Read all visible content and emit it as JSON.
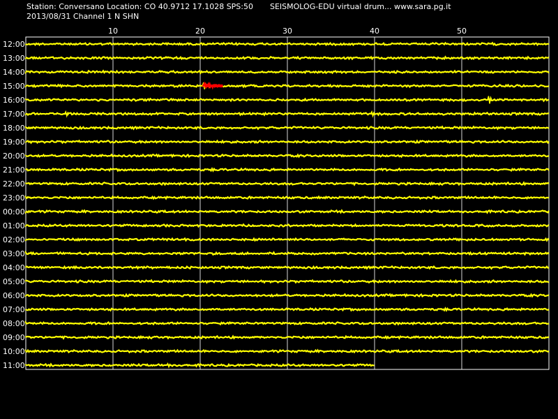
{
  "header": {
    "station_line": "Station: Conversano Location: CO 40.9712 17.1028 SPS:50",
    "date_line": "2013/08/31  Channel 1 N SHN",
    "title": "SEISMOLOG-EDU virtual drum... www.sara.pg.it"
  },
  "colors": {
    "background": "#000000",
    "trace": "#ffff00",
    "event": "#ff0000",
    "grid": "#ffffff",
    "text": "#ffffff"
  },
  "chart_data": {
    "type": "line",
    "title": "SEISMOLOG-EDU virtual drum... www.sara.pg.it",
    "xlabel": "",
    "ylabel": "",
    "x_unit": "minutes",
    "xlim": [
      0,
      60
    ],
    "x_ticks": [
      10,
      20,
      30,
      40,
      50
    ],
    "grid": true,
    "rows": [
      {
        "label": "12:00",
        "end_minute": 60,
        "spikes": []
      },
      {
        "label": "13:00",
        "end_minute": 60,
        "spikes": []
      },
      {
        "label": "14:00",
        "end_minute": 60,
        "spikes": []
      },
      {
        "label": "15:00",
        "end_minute": 60,
        "spikes": [
          {
            "minute": 20.5,
            "amp": 0.8
          }
        ],
        "event": {
          "start": 20.3,
          "end": 22.6,
          "amp": 0.6
        }
      },
      {
        "label": "16:00",
        "end_minute": 60,
        "spikes": [
          {
            "minute": 53.2,
            "amp": 0.9
          }
        ]
      },
      {
        "label": "17:00",
        "end_minute": 60,
        "spikes": [
          {
            "minute": 4.7,
            "amp": 0.5
          },
          {
            "minute": 39.8,
            "amp": 0.5
          }
        ]
      },
      {
        "label": "18:00",
        "end_minute": 60,
        "spikes": []
      },
      {
        "label": "19:00",
        "end_minute": 60,
        "spikes": []
      },
      {
        "label": "20:00",
        "end_minute": 60,
        "spikes": []
      },
      {
        "label": "21:00",
        "end_minute": 60,
        "spikes": []
      },
      {
        "label": "22:00",
        "end_minute": 60,
        "spikes": []
      },
      {
        "label": "23:00",
        "end_minute": 60,
        "spikes": []
      },
      {
        "label": "00:00",
        "end_minute": 60,
        "spikes": []
      },
      {
        "label": "01:00",
        "end_minute": 60,
        "spikes": []
      },
      {
        "label": "02:00",
        "end_minute": 60,
        "spikes": []
      },
      {
        "label": "03:00",
        "end_minute": 60,
        "spikes": []
      },
      {
        "label": "04:00",
        "end_minute": 60,
        "spikes": []
      },
      {
        "label": "05:00",
        "end_minute": 60,
        "spikes": []
      },
      {
        "label": "06:00",
        "end_minute": 60,
        "spikes": []
      },
      {
        "label": "07:00",
        "end_minute": 60,
        "spikes": []
      },
      {
        "label": "08:00",
        "end_minute": 60,
        "spikes": []
      },
      {
        "label": "09:00",
        "end_minute": 60,
        "spikes": []
      },
      {
        "label": "10:00",
        "end_minute": 60,
        "spikes": []
      },
      {
        "label": "11:00",
        "end_minute": 40,
        "spikes": [
          {
            "minute": 16.4,
            "amp": 0.4
          }
        ]
      }
    ]
  }
}
